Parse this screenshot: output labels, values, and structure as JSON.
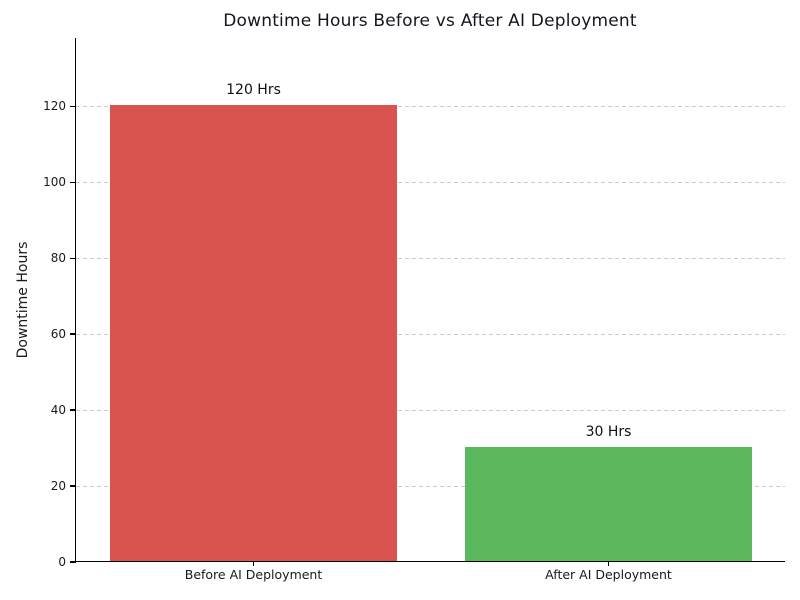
{
  "chart_data": {
    "type": "bar",
    "title": "Downtime Hours Before vs After AI Deployment",
    "xlabel": "",
    "ylabel": "Downtime Hours",
    "categories": [
      "Before AI Deployment",
      "After AI Deployment"
    ],
    "values": [
      120,
      30
    ],
    "bar_value_labels": [
      "120 Hrs",
      "30 Hrs"
    ],
    "bar_colors": [
      "#d9534f",
      "#5cb85c"
    ],
    "yticks": [
      0,
      20,
      40,
      60,
      80,
      100,
      120
    ],
    "ylim": [
      0,
      138
    ],
    "bar_width_fraction": 0.405,
    "grid": {
      "axis": "y",
      "style": "dashed",
      "color": "#cccccc"
    },
    "legend_position": "none"
  },
  "colors": {
    "background": "#ffffff",
    "axis": "#000000",
    "grid": "#cccccc",
    "title_text": "#15151f",
    "tick_text": "#1a1a1a",
    "value_label_text": "#111111"
  }
}
